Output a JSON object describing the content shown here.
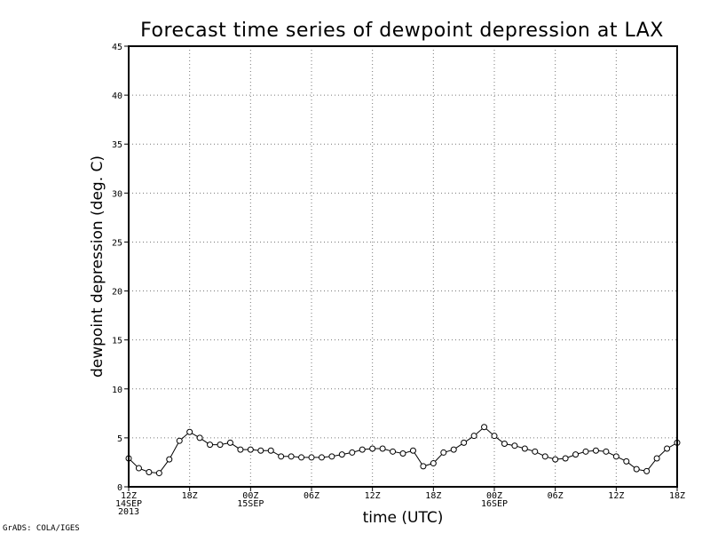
{
  "credit": "GrADS: COLA/IGES",
  "chart_data": {
    "type": "line",
    "title": "Forecast time series of dewpoint depression at LAX",
    "xlabel": "time (UTC)",
    "ylabel": "dewpoint depression (deg. C)",
    "x_start": "2013-09-14 12Z",
    "x_step_hours": 1,
    "ylim": [
      0,
      45
    ],
    "xlim_hours": [
      0,
      54
    ],
    "grid": true,
    "marker": "open-circle",
    "y_ticks": [
      0,
      5,
      10,
      15,
      20,
      25,
      30,
      35,
      40,
      45
    ],
    "x_ticks": [
      {
        "hour": 0,
        "labels": [
          "12Z",
          "14SEP",
          "2013"
        ]
      },
      {
        "hour": 6,
        "labels": [
          "18Z"
        ]
      },
      {
        "hour": 12,
        "labels": [
          "00Z",
          "15SEP"
        ]
      },
      {
        "hour": 18,
        "labels": [
          "06Z"
        ]
      },
      {
        "hour": 24,
        "labels": [
          "12Z"
        ]
      },
      {
        "hour": 30,
        "labels": [
          "18Z"
        ]
      },
      {
        "hour": 36,
        "labels": [
          "00Z",
          "16SEP"
        ]
      },
      {
        "hour": 42,
        "labels": [
          "06Z"
        ]
      },
      {
        "hour": 48,
        "labels": [
          "12Z"
        ]
      },
      {
        "hour": 54,
        "labels": [
          "18Z"
        ]
      }
    ],
    "series": [
      {
        "values": [
          2.9,
          1.9,
          1.5,
          1.4,
          2.8,
          4.7,
          5.6,
          5.0,
          4.3,
          4.3,
          4.5,
          3.8,
          3.8,
          3.7,
          3.7,
          3.1,
          3.1,
          3.0,
          3.0,
          3.0,
          3.1,
          3.3,
          3.5,
          3.8,
          3.9,
          3.9,
          3.6,
          3.4,
          3.7,
          2.1,
          2.4,
          3.5,
          3.8,
          4.5,
          5.2,
          6.1,
          5.2,
          4.4,
          4.2,
          3.9,
          3.6,
          3.1,
          2.8,
          2.9,
          3.3,
          3.6,
          3.7,
          3.6,
          3.1,
          2.6,
          1.8,
          1.6,
          2.9,
          3.9,
          4.5
        ]
      }
    ]
  }
}
